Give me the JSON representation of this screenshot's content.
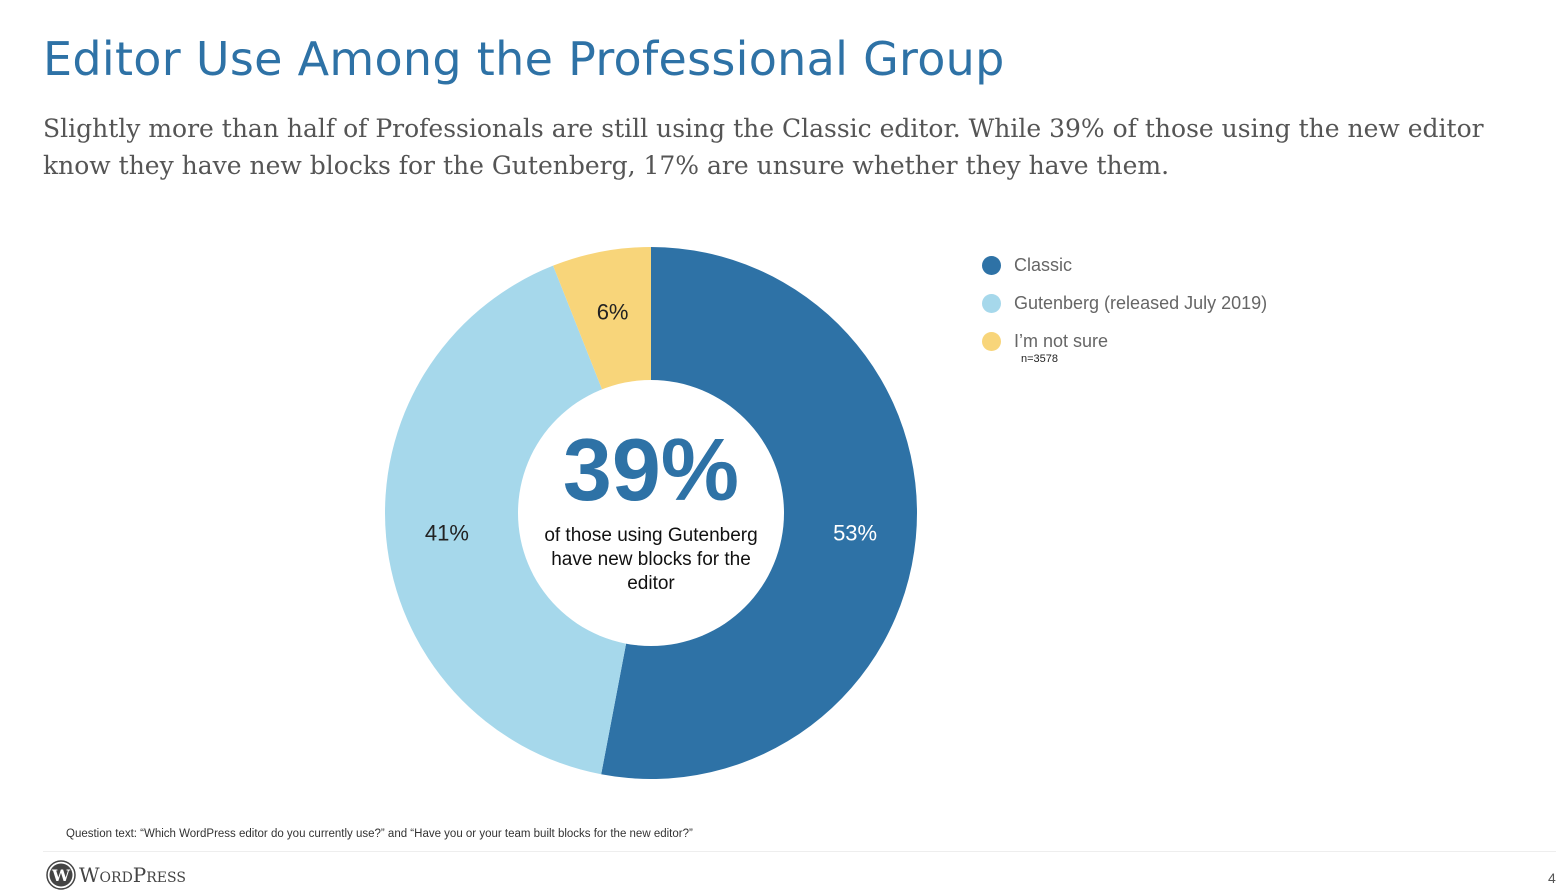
{
  "title": "Editor Use Among the Professional Group",
  "subtitle": "Slightly more than half of Professionals are still using the Classic editor. While 39% of those using the new editor know they have new blocks for the Gutenberg, 17% are unsure whether they have them.",
  "chart_data": {
    "type": "pie",
    "variant": "donut",
    "slices": [
      {
        "label": "Classic",
        "value": 53,
        "data_label": "53%",
        "color": "#2e72a6",
        "label_color": "#ffffff"
      },
      {
        "label": "Gutenberg (released July 2019)",
        "value": 41,
        "data_label": "41%",
        "color": "#a6d8eb",
        "label_color": "#222222"
      },
      {
        "label": "I’m not sure",
        "value": 6,
        "data_label": "6%",
        "color": "#f8d57a",
        "label_color": "#222222"
      }
    ],
    "center_value": "39%",
    "center_text": "of those using Gutenberg have new blocks for the editor",
    "legend_position": "right",
    "note": "n=3578"
  },
  "question": "Question text: “Which WordPress editor do you currently use?” and “Have you or your team built blocks for the new editor?”",
  "logo": "WordPress",
  "page_number": "4"
}
